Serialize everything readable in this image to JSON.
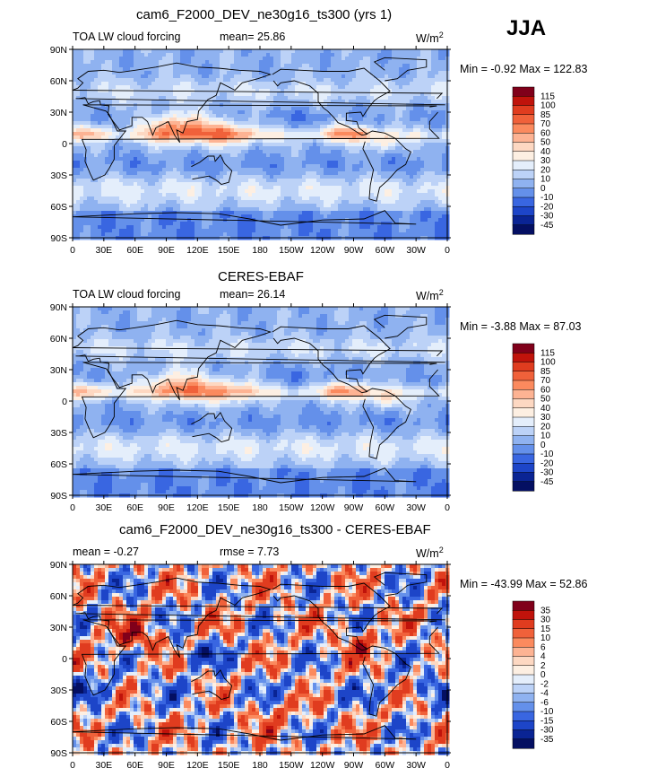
{
  "season": "JJA",
  "units_base": "W/m",
  "units_exp": "2",
  "panels": [
    {
      "title": "cam6_F2000_DEV_ne30g16_ts300 (yrs 1)",
      "left_label": "TOA LW cloud forcing",
      "center_label": "mean=  25.86",
      "minmax": "Min =   -0.92 Max = 122.83",
      "colorbar": {
        "labels": [
          "115",
          "100",
          "85",
          "70",
          "60",
          "50",
          "40",
          "30",
          "20",
          "10",
          "0",
          "-10",
          "-20",
          "-30",
          "-45"
        ],
        "colors": [
          "#80001a",
          "#c0130b",
          "#e03c1f",
          "#f0613a",
          "#fb8a5e",
          "#fdb393",
          "#fdd8c2",
          "#fdefe2",
          "#e4eefb",
          "#bcd2f7",
          "#8fb2f0",
          "#6490ea",
          "#3966e1",
          "#1d45c8",
          "#0a2494",
          "#040f62"
        ]
      },
      "x_ticks": [
        "0",
        "30E",
        "60E",
        "90E",
        "120E",
        "150E",
        "180",
        "150W",
        "120W",
        "90W",
        "60W",
        "30W",
        "0"
      ],
      "y_ticks": [
        "90N",
        "60N",
        "30N",
        "0",
        "30S",
        "60S",
        "90S"
      ]
    },
    {
      "title": "CERES-EBAF",
      "left_label": "TOA LW cloud forcing",
      "center_label": "mean=  26.14",
      "minmax": "Min =   -3.88 Max =  87.03",
      "colorbar": {
        "labels": [
          "115",
          "100",
          "85",
          "70",
          "60",
          "50",
          "40",
          "30",
          "20",
          "10",
          "0",
          "-10",
          "-20",
          "-30",
          "-45"
        ],
        "colors": [
          "#80001a",
          "#c0130b",
          "#e03c1f",
          "#f0613a",
          "#fb8a5e",
          "#fdb393",
          "#fdd8c2",
          "#fdefe2",
          "#e4eefb",
          "#bcd2f7",
          "#8fb2f0",
          "#6490ea",
          "#3966e1",
          "#1d45c8",
          "#0a2494",
          "#040f62"
        ]
      },
      "x_ticks": [
        "0",
        "30E",
        "60E",
        "90E",
        "120E",
        "150E",
        "180",
        "150W",
        "120W",
        "90W",
        "60W",
        "30W",
        "0"
      ],
      "y_ticks": [
        "90N",
        "60N",
        "30N",
        "0",
        "30S",
        "60S",
        "90S"
      ]
    },
    {
      "title": "cam6_F2000_DEV_ne30g16_ts300 - CERES-EBAF",
      "left_label": "mean =   -0.27",
      "center_label": "rmse =    7.73",
      "minmax": "Min = -43.99 Max =  52.86",
      "colorbar": {
        "labels": [
          "35",
          "30",
          "15",
          "10",
          "6",
          "4",
          "2",
          "0",
          "-2",
          "-4",
          "-6",
          "-10",
          "-15",
          "-30",
          "-35"
        ],
        "colors": [
          "#80001a",
          "#c0130b",
          "#e03c1f",
          "#f0613a",
          "#fb8a5e",
          "#fdb393",
          "#fdd8c2",
          "#fdefe2",
          "#e4eefb",
          "#bcd2f7",
          "#8fb2f0",
          "#6490ea",
          "#3966e1",
          "#1d45c8",
          "#0a2494",
          "#040f62"
        ]
      },
      "x_ticks": [
        "0",
        "30E",
        "60E",
        "90E",
        "120E",
        "150E",
        "180",
        "150W",
        "120W",
        "90W",
        "60W",
        "30W",
        "0"
      ],
      "y_ticks": [
        "90N",
        "60N",
        "30N",
        "0",
        "30S",
        "60S",
        "90S"
      ]
    }
  ],
  "chart_data": [
    {
      "type": "heatmap",
      "title": "cam6_F2000_DEV_ne30g16_ts300 (yrs 1)",
      "variable": "TOA LW cloud forcing",
      "units": "W/m^2",
      "season": "JJA",
      "mean": 25.86,
      "min": -0.92,
      "max": 122.83,
      "x_range": [
        0,
        360
      ],
      "y_range": [
        -90,
        90
      ],
      "contour_levels": [
        -45,
        -30,
        -20,
        -10,
        0,
        10,
        20,
        30,
        40,
        50,
        60,
        70,
        85,
        100,
        115
      ]
    },
    {
      "type": "heatmap",
      "title": "CERES-EBAF",
      "variable": "TOA LW cloud forcing",
      "units": "W/m^2",
      "season": "JJA",
      "mean": 26.14,
      "min": -3.88,
      "max": 87.03,
      "x_range": [
        0,
        360
      ],
      "y_range": [
        -90,
        90
      ],
      "contour_levels": [
        -45,
        -30,
        -20,
        -10,
        0,
        10,
        20,
        30,
        40,
        50,
        60,
        70,
        85,
        100,
        115
      ]
    },
    {
      "type": "heatmap",
      "title": "cam6_F2000_DEV_ne30g16_ts300 - CERES-EBAF",
      "variable": "TOA LW cloud forcing difference",
      "units": "W/m^2",
      "season": "JJA",
      "mean": -0.27,
      "rmse": 7.73,
      "min": -43.99,
      "max": 52.86,
      "x_range": [
        0,
        360
      ],
      "y_range": [
        -90,
        90
      ],
      "contour_levels": [
        -35,
        -30,
        -15,
        -10,
        -6,
        -4,
        -2,
        0,
        2,
        4,
        6,
        10,
        15,
        30,
        35
      ]
    }
  ]
}
